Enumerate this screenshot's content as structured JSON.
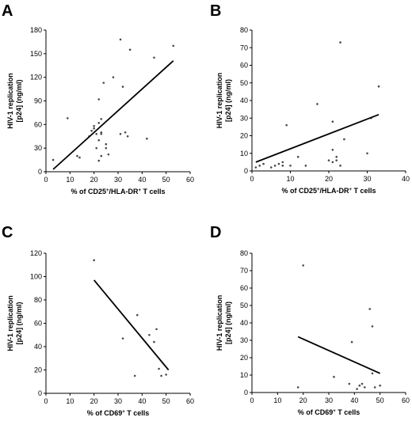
{
  "chart_data": [
    {
      "panel": "A",
      "type": "scatter",
      "ylabel_line1": "HIV-1 replication",
      "ylabel_line2": "[p24] (ng/ml)",
      "xlabel": "% of CD25+/HLA-DR+ T cells",
      "xlabel_parts": [
        "% of CD25",
        "+",
        "/HLA-DR",
        "+",
        " T cells"
      ],
      "xlim": [
        0,
        60
      ],
      "xticks": [
        0,
        10,
        20,
        30,
        40,
        50,
        60
      ],
      "ylim": [
        0,
        180
      ],
      "yticks": [
        0,
        30,
        60,
        90,
        120,
        150,
        180
      ],
      "points": [
        [
          3,
          15
        ],
        [
          9,
          68
        ],
        [
          13,
          20
        ],
        [
          14,
          18
        ],
        [
          18,
          45
        ],
        [
          19,
          52
        ],
        [
          20,
          55
        ],
        [
          20,
          58
        ],
        [
          21,
          48
        ],
        [
          21,
          30
        ],
        [
          22,
          40
        ],
        [
          22,
          62
        ],
        [
          22,
          92
        ],
        [
          22,
          14
        ],
        [
          23,
          50
        ],
        [
          23,
          67
        ],
        [
          23,
          20
        ],
        [
          23,
          48
        ],
        [
          24,
          113
        ],
        [
          25,
          30
        ],
        [
          25,
          35
        ],
        [
          26,
          22
        ],
        [
          28,
          120
        ],
        [
          31,
          48
        ],
        [
          31,
          168
        ],
        [
          32,
          108
        ],
        [
          33,
          50
        ],
        [
          34,
          45
        ],
        [
          35,
          155
        ],
        [
          42,
          42
        ],
        [
          45,
          145
        ],
        [
          53,
          160
        ]
      ],
      "fit_line": [
        [
          3,
          3
        ],
        [
          53,
          141
        ]
      ]
    },
    {
      "panel": "B",
      "type": "scatter",
      "ylabel_line1": "HIV-1 replication",
      "ylabel_line2": "[p24] (ng/ml)",
      "xlabel": "% of CD25+/HLA-DR+ T cells",
      "xlabel_parts": [
        "% of CD25",
        "+",
        "/HLA-DR",
        "+",
        " T cells"
      ],
      "xlim": [
        0,
        40
      ],
      "xticks": [
        0,
        10,
        20,
        30,
        40
      ],
      "ylim": [
        0,
        80
      ],
      "yticks": [
        0,
        10,
        20,
        30,
        40,
        50,
        60,
        70,
        80
      ],
      "points": [
        [
          1,
          2
        ],
        [
          2,
          3
        ],
        [
          3,
          4
        ],
        [
          5,
          2
        ],
        [
          6,
          3
        ],
        [
          7,
          4
        ],
        [
          8,
          3
        ],
        [
          8,
          5
        ],
        [
          9,
          26
        ],
        [
          10,
          3
        ],
        [
          12,
          8
        ],
        [
          14,
          3
        ],
        [
          17,
          38
        ],
        [
          20,
          6
        ],
        [
          21,
          12
        ],
        [
          21,
          28
        ],
        [
          21,
          5
        ],
        [
          22,
          8
        ],
        [
          22,
          6
        ],
        [
          23,
          73
        ],
        [
          23,
          3
        ],
        [
          24,
          18
        ],
        [
          30,
          10
        ],
        [
          31,
          30
        ],
        [
          33,
          48
        ]
      ],
      "fit_line": [
        [
          1,
          5
        ],
        [
          33,
          32
        ]
      ]
    },
    {
      "panel": "C",
      "type": "scatter",
      "ylabel_line1": "HIV-1 replication",
      "ylabel_line2": "[p24] (ng/ml)",
      "xlabel": "% of CD69+ T cells",
      "xlabel_parts": [
        "% of CD69",
        "+",
        " T cells"
      ],
      "xlim": [
        0,
        60
      ],
      "xticks": [
        0,
        10,
        20,
        30,
        40,
        50,
        60
      ],
      "ylim": [
        0,
        120
      ],
      "yticks": [
        0,
        20,
        40,
        60,
        80,
        100,
        120
      ],
      "points": [
        [
          20,
          114
        ],
        [
          32,
          47
        ],
        [
          37,
          15
        ],
        [
          38,
          67
        ],
        [
          43,
          50
        ],
        [
          45,
          44
        ],
        [
          46,
          55
        ],
        [
          47,
          21
        ],
        [
          48,
          15
        ],
        [
          50,
          16
        ]
      ],
      "fit_line": [
        [
          20,
          97
        ],
        [
          51,
          20
        ]
      ]
    },
    {
      "panel": "D",
      "type": "scatter",
      "ylabel_line1": "HIV-1 replication",
      "ylabel_line2": "[p24] (ng/ml)",
      "xlabel": "% of CD69+ T cells",
      "xlabel_parts": [
        "% of CD69",
        "+",
        " T cells"
      ],
      "xlim": [
        0,
        60
      ],
      "xticks": [
        0,
        10,
        20,
        30,
        40,
        50,
        60
      ],
      "ylim": [
        0,
        80
      ],
      "yticks": [
        0,
        10,
        20,
        30,
        40,
        50,
        60,
        70,
        80
      ],
      "points": [
        [
          18,
          3
        ],
        [
          20,
          73
        ],
        [
          32,
          9
        ],
        [
          38,
          5
        ],
        [
          39,
          29
        ],
        [
          41,
          2
        ],
        [
          42,
          4
        ],
        [
          43,
          5
        ],
        [
          44,
          3
        ],
        [
          46,
          48
        ],
        [
          47,
          11
        ],
        [
          47,
          38
        ],
        [
          48,
          3
        ],
        [
          50,
          4
        ]
      ],
      "fit_line": [
        [
          18,
          32
        ],
        [
          50,
          11
        ]
      ]
    }
  ]
}
